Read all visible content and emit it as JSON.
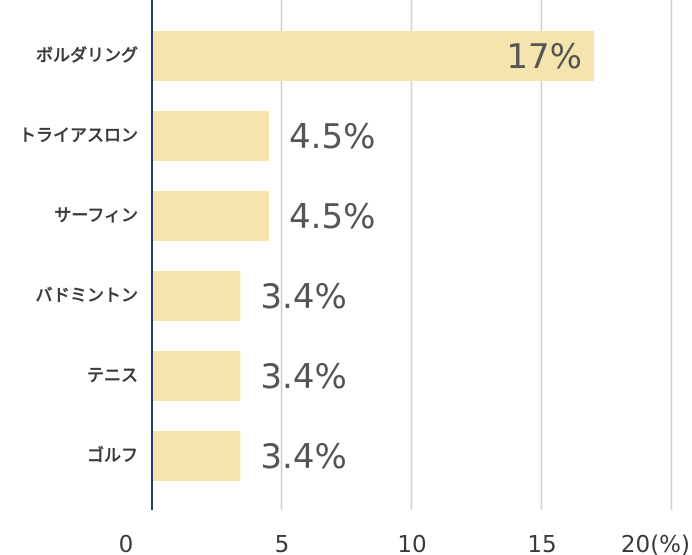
{
  "chart_data": {
    "type": "bar",
    "orientation": "horizontal",
    "categories": [
      "ボルダリング",
      "トライアスロン",
      "サーフィン",
      "バドミントン",
      "テニス",
      "ゴルフ"
    ],
    "values": [
      17,
      4.5,
      4.5,
      3.4,
      3.4,
      3.4
    ],
    "value_labels": [
      "17%",
      "4.5%",
      "4.5%",
      "3.4%",
      "3.4%",
      "3.4%"
    ],
    "x_ticks": [
      0,
      5,
      10,
      15,
      20
    ],
    "x_tick_labels": [
      "0",
      "5",
      "10",
      "15",
      "20(%)"
    ],
    "xlim": [
      0,
      20
    ],
    "grid": true,
    "colors": {
      "bar": "#f5e4ad",
      "axis": "#1f3f6e",
      "grid": "#cfcfcf",
      "label": "#555555",
      "category": "#3a3a3a"
    }
  }
}
